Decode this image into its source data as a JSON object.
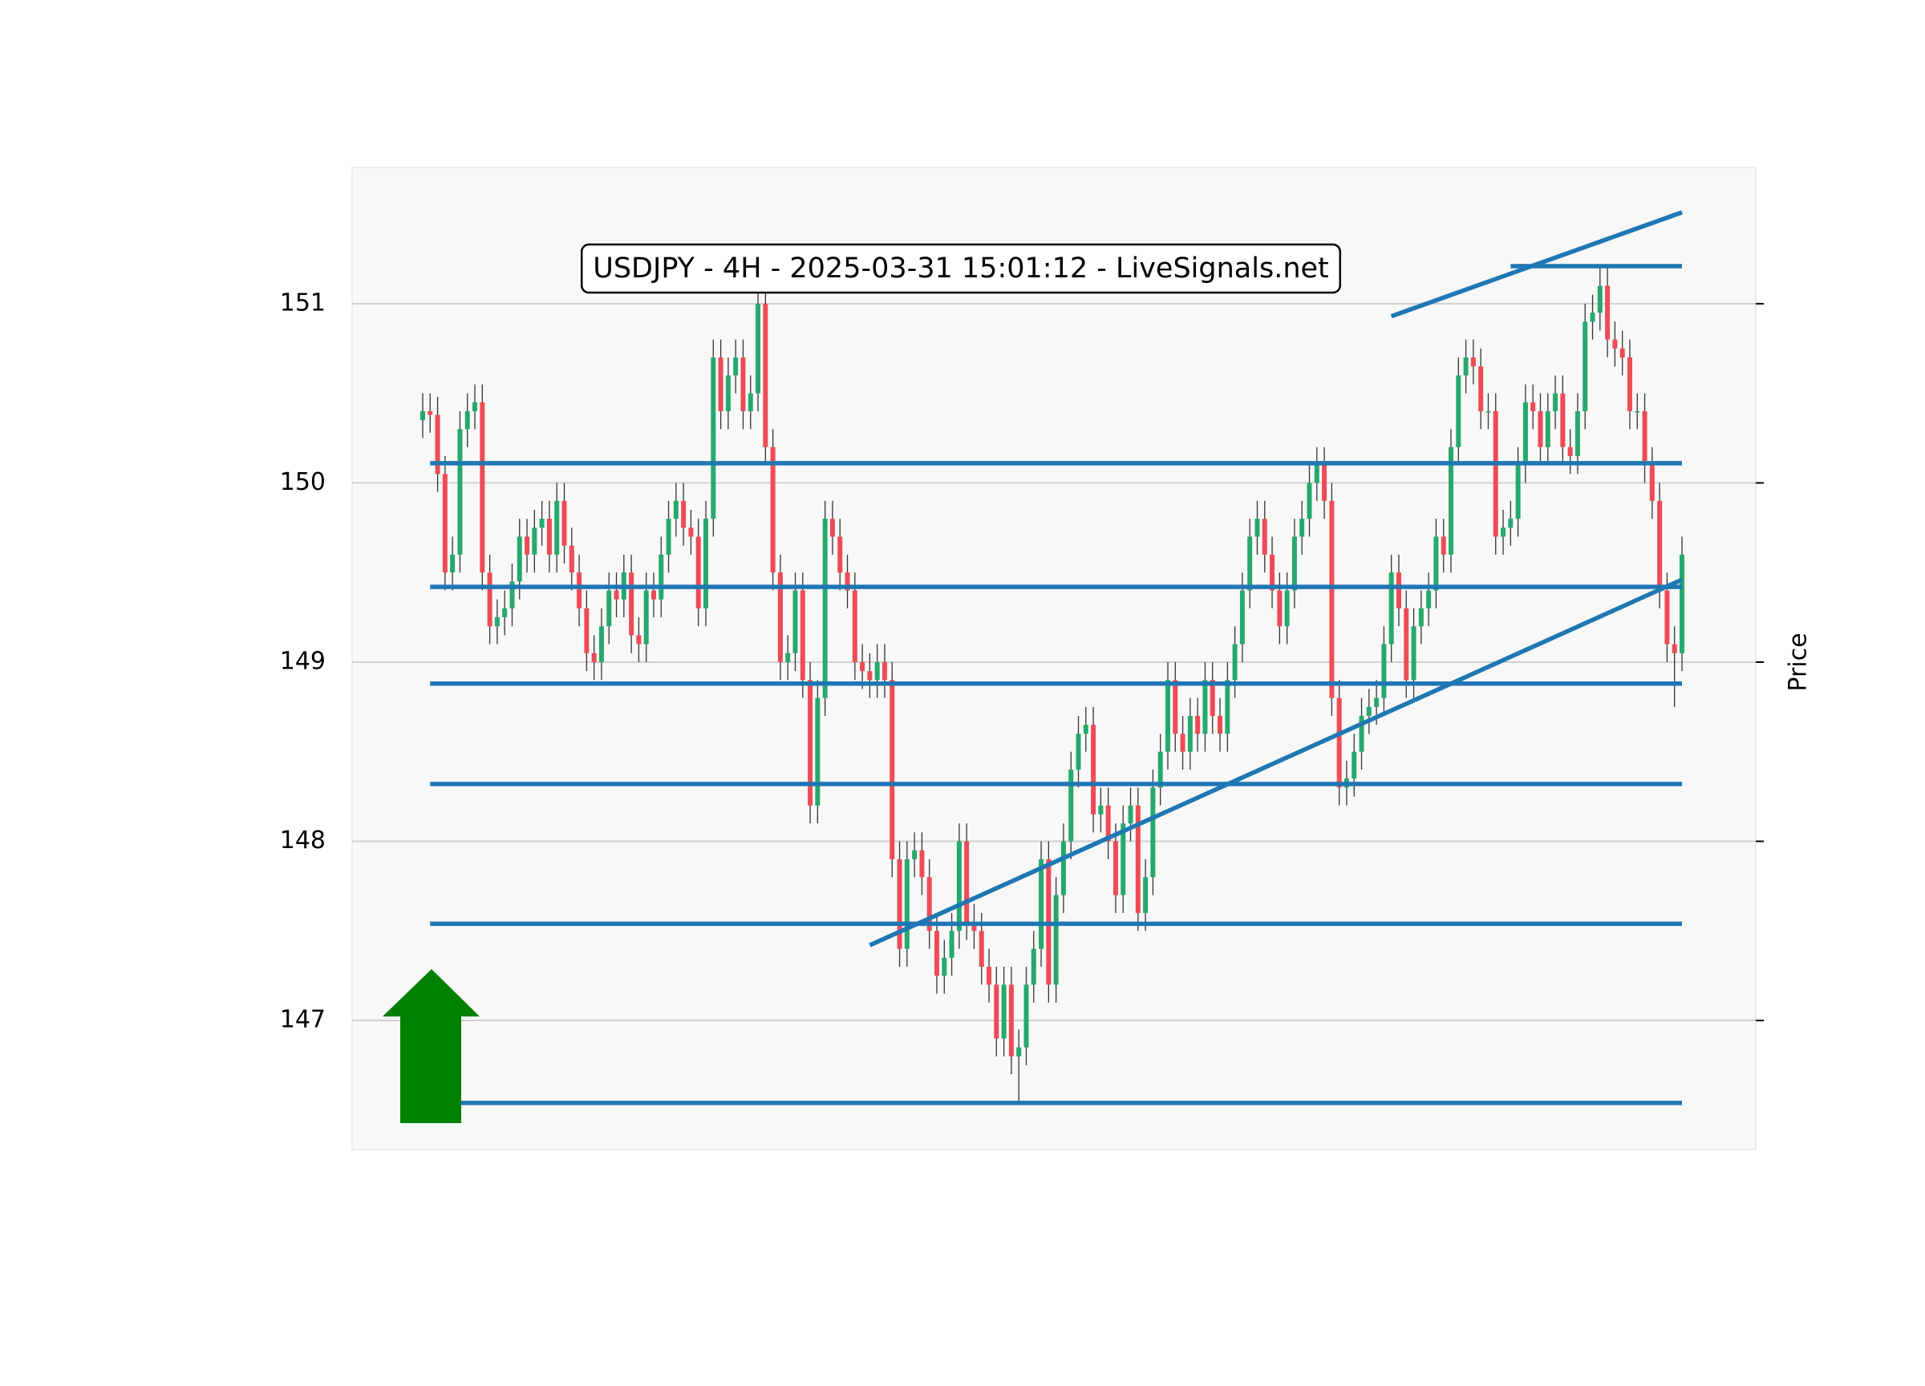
{
  "chart_data": {
    "type": "candlestick",
    "title": "USDJPY - 4H - 2025-03-31 15:01:12 - LiveSignals.net",
    "y_label": "Price",
    "ylim": [
      146.28,
      151.76
    ],
    "yticks": [
      147,
      148,
      149,
      150,
      151
    ],
    "grid": true,
    "up_color": "#26a96c",
    "down_color": "#ef4b55",
    "line_color": "#1f77b4",
    "open": [
      150.35,
      150.4,
      150.38,
      150.05,
      149.5,
      149.6,
      150.3,
      150.4,
      150.45,
      149.5,
      149.2,
      149.25,
      149.3,
      149.45,
      149.7,
      149.6,
      149.75,
      149.8,
      149.6,
      149.9,
      149.65,
      149.5,
      149.3,
      149.05,
      149.0,
      149.2,
      149.4,
      149.35,
      149.5,
      149.15,
      149.1,
      149.4,
      149.35,
      149.6,
      149.8,
      149.9,
      149.75,
      149.7,
      149.3,
      149.8,
      150.7,
      150.4,
      150.6,
      150.7,
      150.4,
      150.5,
      151.0,
      150.2,
      149.5,
      149.0,
      149.05,
      149.4,
      148.9,
      148.2,
      148.8,
      149.8,
      149.7,
      149.5,
      149.4,
      149.0,
      148.95,
      148.9,
      149.0,
      148.9,
      147.9,
      147.4,
      147.9,
      147.95,
      147.8,
      147.5,
      147.25,
      147.35,
      147.5,
      148.0,
      147.55,
      147.5,
      147.3,
      147.2,
      146.9,
      147.2,
      146.8,
      146.85,
      147.2,
      147.4,
      147.9,
      147.2,
      147.7,
      148.0,
      148.4,
      148.6,
      148.65,
      148.15,
      148.2,
      148.0,
      147.7,
      148.1,
      148.2,
      147.6,
      147.8,
      148.3,
      148.5,
      148.9,
      148.6,
      148.5,
      148.7,
      148.6,
      148.9,
      148.7,
      148.6,
      148.9,
      149.1,
      149.4,
      149.7,
      149.8,
      149.6,
      149.4,
      149.2,
      149.4,
      149.7,
      149.8,
      150.0,
      150.1,
      149.9,
      148.8,
      148.3,
      148.35,
      148.5,
      148.7,
      148.75,
      148.8,
      149.1,
      149.5,
      149.3,
      148.9,
      149.2,
      149.3,
      149.4,
      149.7,
      149.6,
      150.2,
      150.6,
      150.7,
      150.65,
      150.4,
      150.4,
      149.7,
      149.75,
      149.8,
      150.1,
      150.45,
      150.4,
      150.2,
      150.4,
      150.5,
      150.2,
      150.15,
      150.4,
      150.9,
      150.95,
      151.1,
      150.8,
      150.75,
      150.7,
      150.4,
      150.4,
      150.1,
      149.9,
      149.4,
      149.1,
      149.05
    ],
    "high": [
      150.5,
      150.5,
      150.48,
      150.15,
      149.7,
      150.4,
      150.5,
      150.55,
      150.55,
      149.6,
      149.35,
      149.4,
      149.55,
      149.8,
      149.8,
      149.85,
      149.9,
      149.9,
      150.0,
      150.0,
      149.75,
      149.6,
      149.4,
      149.15,
      149.3,
      149.5,
      149.5,
      149.6,
      149.6,
      149.25,
      149.5,
      149.5,
      149.7,
      149.9,
      150.0,
      150.0,
      149.85,
      149.8,
      149.9,
      150.8,
      150.8,
      150.7,
      150.8,
      150.8,
      150.6,
      151.1,
      151.1,
      150.3,
      149.6,
      149.15,
      149.5,
      149.5,
      149.0,
      148.9,
      149.9,
      149.9,
      149.8,
      149.6,
      149.5,
      149.1,
      149.05,
      149.1,
      149.1,
      149.0,
      148.0,
      148.0,
      148.05,
      148.05,
      147.9,
      147.6,
      147.45,
      147.6,
      148.1,
      148.1,
      147.65,
      147.6,
      147.4,
      147.3,
      147.3,
      147.3,
      146.95,
      147.3,
      147.5,
      148.0,
      148.0,
      147.8,
      148.1,
      148.5,
      148.7,
      148.75,
      148.75,
      148.3,
      148.3,
      148.1,
      148.2,
      148.3,
      148.3,
      147.9,
      148.4,
      148.6,
      149.0,
      149.0,
      148.7,
      148.8,
      148.8,
      149.0,
      149.0,
      148.8,
      149.0,
      149.2,
      149.5,
      149.8,
      149.9,
      149.9,
      149.7,
      149.5,
      149.5,
      149.8,
      149.9,
      150.1,
      150.2,
      150.2,
      150.0,
      148.9,
      148.45,
      148.6,
      148.8,
      148.85,
      148.9,
      149.2,
      149.6,
      149.6,
      149.4,
      149.3,
      149.4,
      149.5,
      149.8,
      149.8,
      150.3,
      150.7,
      150.8,
      150.8,
      150.75,
      150.5,
      150.5,
      149.85,
      149.9,
      150.2,
      150.55,
      150.55,
      150.5,
      150.5,
      150.6,
      150.6,
      150.3,
      150.5,
      151.0,
      151.05,
      151.2,
      151.2,
      150.9,
      150.85,
      150.8,
      150.5,
      150.5,
      150.2,
      150.0,
      149.5,
      149.2,
      149.7
    ],
    "low": [
      150.25,
      150.28,
      149.95,
      149.4,
      149.4,
      149.5,
      150.2,
      150.3,
      149.4,
      149.1,
      149.1,
      149.15,
      149.2,
      149.35,
      149.5,
      149.5,
      149.65,
      149.5,
      149.5,
      149.55,
      149.4,
      149.2,
      148.95,
      148.9,
      148.9,
      149.1,
      149.25,
      149.25,
      149.05,
      149.0,
      149.0,
      149.25,
      149.25,
      149.5,
      149.7,
      149.65,
      149.6,
      149.2,
      149.2,
      149.7,
      150.3,
      150.3,
      150.5,
      150.3,
      150.3,
      150.4,
      150.1,
      149.4,
      148.9,
      148.9,
      148.95,
      148.8,
      148.1,
      148.1,
      148.7,
      149.6,
      149.4,
      149.3,
      148.9,
      148.85,
      148.8,
      148.8,
      148.8,
      147.8,
      147.3,
      147.3,
      147.8,
      147.7,
      147.4,
      147.15,
      147.15,
      147.25,
      147.4,
      147.45,
      147.4,
      147.2,
      147.1,
      146.8,
      146.8,
      146.7,
      146.55,
      146.75,
      147.1,
      147.3,
      147.1,
      147.1,
      147.6,
      147.9,
      148.3,
      148.5,
      148.05,
      148.05,
      147.9,
      147.6,
      147.6,
      148.0,
      147.5,
      147.5,
      147.7,
      148.2,
      148.4,
      148.5,
      148.4,
      148.4,
      148.5,
      148.5,
      148.6,
      148.5,
      148.5,
      148.8,
      149.0,
      149.3,
      149.6,
      149.5,
      149.3,
      149.1,
      149.1,
      149.3,
      149.6,
      149.7,
      149.9,
      149.8,
      148.7,
      148.2,
      148.2,
      148.25,
      148.4,
      148.6,
      148.65,
      148.7,
      149.0,
      149.2,
      148.8,
      148.8,
      149.1,
      149.2,
      149.3,
      149.5,
      149.5,
      150.1,
      150.5,
      150.55,
      150.3,
      150.3,
      149.6,
      149.6,
      149.65,
      149.7,
      150.0,
      150.3,
      150.1,
      150.1,
      150.3,
      150.1,
      150.05,
      150.05,
      150.3,
      150.8,
      150.85,
      150.7,
      150.65,
      150.6,
      150.3,
      150.3,
      150.0,
      149.8,
      149.3,
      149.0,
      148.75,
      148.95
    ],
    "close": [
      150.4,
      150.38,
      150.05,
      149.5,
      149.6,
      150.3,
      150.4,
      150.45,
      149.5,
      149.2,
      149.25,
      149.3,
      149.45,
      149.7,
      149.6,
      149.75,
      149.8,
      149.6,
      149.9,
      149.65,
      149.5,
      149.3,
      149.05,
      149.0,
      149.2,
      149.4,
      149.35,
      149.5,
      149.15,
      149.1,
      149.4,
      149.35,
      149.6,
      149.8,
      149.9,
      149.75,
      149.7,
      149.3,
      149.8,
      150.7,
      150.4,
      150.6,
      150.7,
      150.4,
      150.5,
      151.0,
      150.2,
      149.5,
      149.0,
      149.05,
      149.4,
      148.9,
      148.2,
      148.8,
      149.8,
      149.7,
      149.5,
      149.4,
      149.0,
      148.95,
      148.9,
      149.0,
      148.9,
      147.9,
      147.4,
      147.9,
      147.95,
      147.8,
      147.5,
      147.25,
      147.35,
      147.5,
      148.0,
      147.55,
      147.5,
      147.3,
      147.2,
      146.9,
      147.2,
      146.8,
      146.85,
      147.2,
      147.4,
      147.9,
      147.2,
      147.7,
      148.0,
      148.4,
      148.6,
      148.65,
      148.15,
      148.2,
      148.0,
      147.7,
      148.1,
      148.2,
      147.6,
      147.8,
      148.3,
      148.5,
      148.9,
      148.6,
      148.5,
      148.7,
      148.6,
      148.9,
      148.7,
      148.6,
      148.9,
      149.1,
      149.4,
      149.7,
      149.8,
      149.6,
      149.4,
      149.2,
      149.4,
      149.7,
      149.8,
      150.0,
      150.1,
      149.9,
      148.8,
      148.3,
      148.35,
      148.5,
      148.7,
      148.75,
      148.8,
      149.1,
      149.5,
      149.3,
      148.9,
      149.2,
      149.3,
      149.4,
      149.7,
      149.6,
      150.2,
      150.6,
      150.7,
      150.65,
      150.4,
      150.4,
      149.7,
      149.75,
      149.8,
      150.1,
      150.45,
      150.4,
      150.2,
      150.4,
      150.5,
      150.2,
      150.15,
      150.4,
      150.9,
      150.95,
      151.1,
      150.8,
      150.75,
      150.7,
      150.4,
      150.4,
      150.1,
      149.9,
      149.4,
      149.1,
      149.05,
      149.6
    ],
    "lines": [
      {
        "x": [
          1,
          169
        ],
        "y": [
          150.11,
          150.11
        ]
      },
      {
        "x": [
          1,
          169
        ],
        "y": [
          149.42,
          149.42
        ]
      },
      {
        "x": [
          1,
          169
        ],
        "y": [
          148.88,
          148.88
        ]
      },
      {
        "x": [
          1,
          169
        ],
        "y": [
          148.32,
          148.32
        ]
      },
      {
        "x": [
          1,
          169
        ],
        "y": [
          147.54,
          147.54
        ]
      },
      {
        "x": [
          1,
          169
        ],
        "y": [
          146.54,
          146.54
        ]
      },
      {
        "x": [
          146,
          169
        ],
        "y": [
          151.21,
          151.21
        ]
      },
      {
        "x": [
          60,
          169
        ],
        "y": [
          147.42,
          149.46
        ]
      },
      {
        "x": [
          130,
          169
        ],
        "y": [
          150.93,
          151.51
        ]
      }
    ]
  }
}
